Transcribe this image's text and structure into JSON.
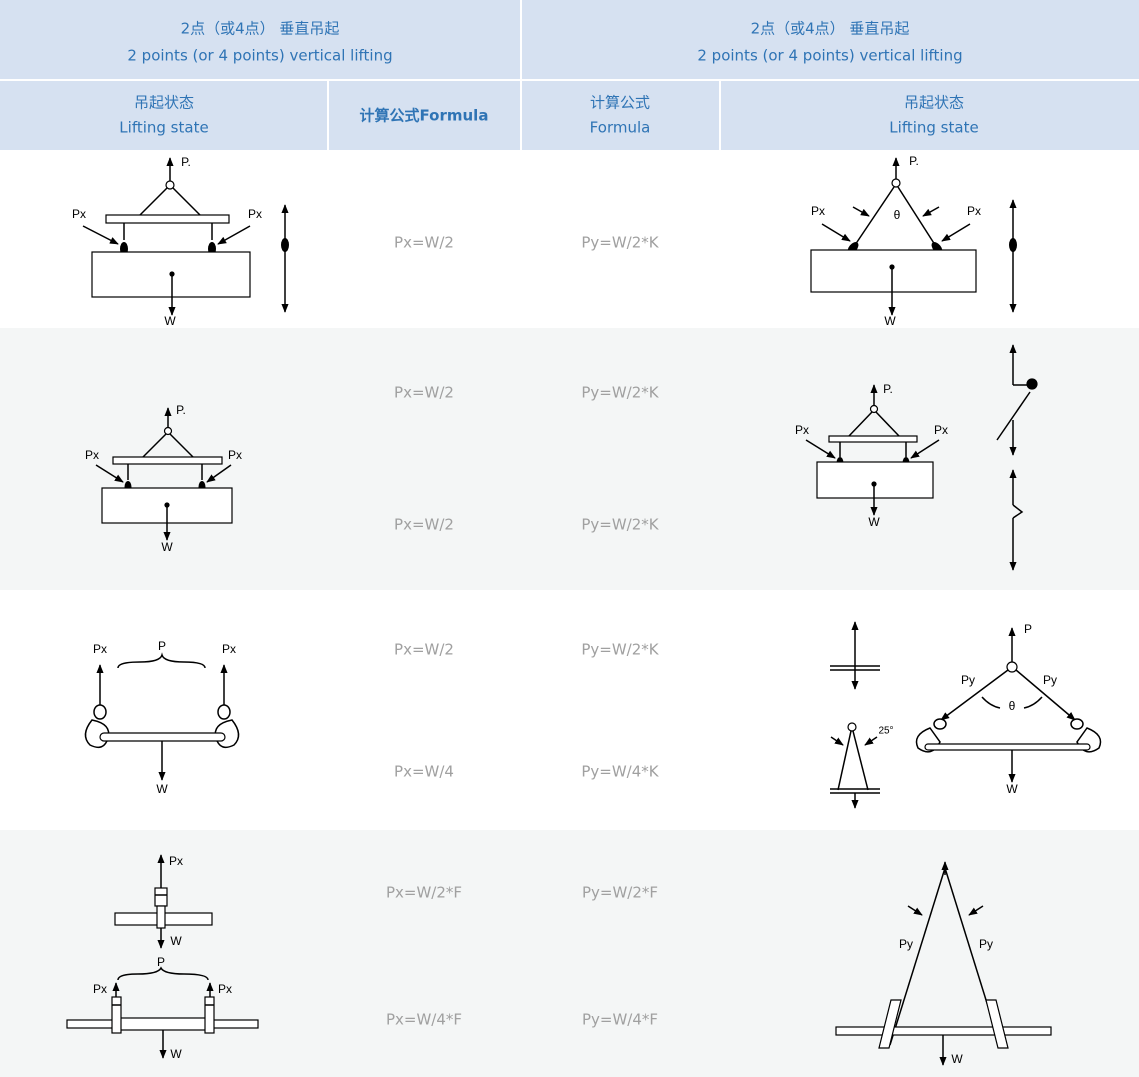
{
  "header": {
    "groups": [
      {
        "zh": "2点（或4点） 垂直吊起",
        "en": "2 points (or 4 points) vertical lifting"
      },
      {
        "zh": "2点（或4点） 垂直吊起",
        "en": "2 points (or 4 points) vertical lifting"
      }
    ],
    "columns": [
      {
        "zh": "吊起状态",
        "en": "Lifting state"
      },
      {
        "zh": "计算公式Formula"
      },
      {
        "zh": "计算公式",
        "en": "Formula"
      },
      {
        "zh": "吊起状态",
        "en": "Lifting state"
      }
    ]
  },
  "table": {
    "rows": [
      {
        "formulas": [
          [
            "Px=W/2",
            "Py=W/2*K"
          ]
        ],
        "left_labels": [
          "P.",
          "Px",
          "Px",
          "W"
        ],
        "right_labels": [
          "P.",
          "Px",
          "θ",
          "Px",
          "W"
        ]
      },
      {
        "formulas": [
          [
            "Px=W/2",
            "Py=W/2*K"
          ],
          [
            "Px=W/2",
            "Py=W/2*K"
          ]
        ],
        "left_labels": [
          "P.",
          "Px",
          "Px",
          "W"
        ],
        "right_labels": [
          "P.",
          "Px",
          "Px",
          "W"
        ]
      },
      {
        "formulas": [
          [
            "Px=W/2",
            "Py=W/2*K"
          ],
          [
            "Px=W/4",
            "Py=W/4*K"
          ]
        ],
        "left_labels": [
          "Px",
          "P",
          "Px",
          "W"
        ],
        "right_labels": [
          "25°",
          "P",
          "Py",
          "Py",
          "θ",
          "W"
        ]
      },
      {
        "formulas": [
          [
            "Px=W/2*F",
            "Py=W/2*F"
          ],
          [
            "Px=W/4*F",
            "Py=W/4*F"
          ]
        ],
        "left_labels": [
          "Px",
          "W",
          "P",
          "Px",
          "Px",
          "W"
        ],
        "right_labels": [
          "Py",
          "Py",
          "W"
        ]
      }
    ]
  }
}
